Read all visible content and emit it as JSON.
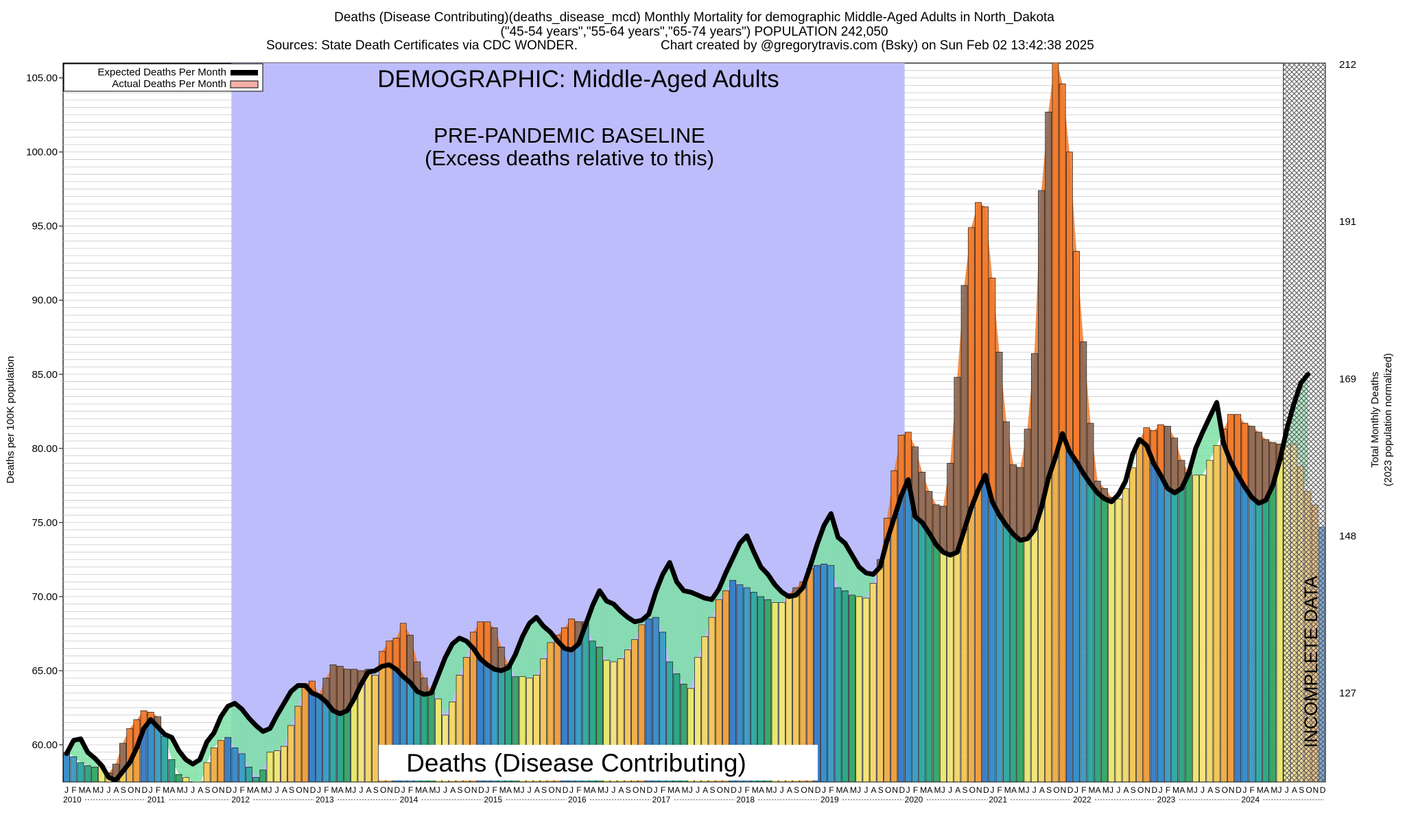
{
  "chart_data": {
    "type": "bar",
    "title": "Deaths (Disease Contributing)(deaths_disease_mcd) Monthly Mortality for demographic Middle-Aged Adults in North_Dakota",
    "subtitle": "(\"45-54 years\",\"55-64 years\",\"65-74 years\") POPULATION 242,050",
    "sources": "Sources: State Death Certificates via CDC WONDER.",
    "credit": "Chart created by @gregorytravis.com (Bsky) on Sun Feb 02 13:42:38 2025",
    "ylabel": "Deaths per 100K population",
    "y2label_line1": "Total Monthly Deaths",
    "y2label_line2": "(2023 population normalized)",
    "ylim": [
      57.5,
      106
    ],
    "y_ticks": [
      "60.00",
      "65.00",
      "70.00",
      "75.00",
      "80.00",
      "85.00",
      "90.00",
      "95.00",
      "100.00",
      "105.00"
    ],
    "y2_ticks": [
      {
        "label": "127",
        "at": 63.5
      },
      {
        "label": "148",
        "at": 74.1
      },
      {
        "label": "169",
        "at": 84.7
      },
      {
        "label": "191",
        "at": 95.3
      },
      {
        "label": "212",
        "at": 105.9
      }
    ],
    "month_letters": [
      "J",
      "F",
      "M",
      "A",
      "M",
      "J",
      "J",
      "A",
      "S",
      "O",
      "N",
      "D"
    ],
    "years": [
      "2010",
      "2011",
      "2012",
      "2013",
      "2014",
      "2015",
      "2016",
      "2017",
      "2018",
      "2019",
      "2020",
      "2021",
      "2022",
      "2023",
      "2024"
    ],
    "legend": {
      "expected": "Expected Deaths Per Month",
      "actual": "Actual Deaths Per Month",
      "position": "top-left"
    },
    "annotations": {
      "demographic": "DEMOGRAPHIC: Middle-Aged Adults",
      "baseline_line1": "PRE-PANDEMIC BASELINE",
      "baseline_line2": "(Excess deaths relative to this)",
      "category": "Deaths (Disease Contributing)",
      "incomplete": "INCOMPLETE DATA"
    },
    "baseline_period": [
      "2012-01",
      "2019-12"
    ],
    "incomplete_period": [
      "2024-07",
      "2024-12"
    ],
    "colors": {
      "baseline_band": "#bdbdfb",
      "expected_line": "#000000",
      "excess_fill": "#f07a2c",
      "deficit_fill": "#7de0a5",
      "actual_area": "#f6b0a8",
      "month_palette": [
        "#3a8fc9",
        "#3f9ec6",
        "#35a9a4",
        "#2ea886",
        "#3aa868",
        "#e8e870",
        "#f2e47a",
        "#f2d86c",
        "#f2c85c",
        "#eeb04a",
        "#eea040",
        "#3a80c8"
      ]
    },
    "actual": [
      59.5,
      59.2,
      58.8,
      58.6,
      58.5,
      58.6,
      58.1,
      58.7,
      60.1,
      61.1,
      61.7,
      62.3,
      62.2,
      61.9,
      60.6,
      59.0,
      58.0,
      57.8,
      57.5,
      57.2,
      58.8,
      59.8,
      60.3,
      60.5,
      59.8,
      59.4,
      58.5,
      57.8,
      58.3,
      59.5,
      59.6,
      59.9,
      61.3,
      62.6,
      64.1,
      64.3,
      63.4,
      64.5,
      65.4,
      65.3,
      65.1,
      65.1,
      65.0,
      65.1,
      64.7,
      66.3,
      67.0,
      67.2,
      68.2,
      67.4,
      65.6,
      64.5,
      63.6,
      63.1,
      62.0,
      62.9,
      64.7,
      65.9,
      67.6,
      68.3,
      68.3,
      67.9,
      66.6,
      65.4,
      64.6,
      64.6,
      64.5,
      64.7,
      65.8,
      66.9,
      67.4,
      67.9,
      68.5,
      68.3,
      68.3,
      67.0,
      66.6,
      65.7,
      65.6,
      65.8,
      66.4,
      67.1,
      68.1,
      68.5,
      68.6,
      67.6,
      65.6,
      64.8,
      64.1,
      63.8,
      65.9,
      67.3,
      68.6,
      69.8,
      70.4,
      71.1,
      70.8,
      70.6,
      70.3,
      70.0,
      69.8,
      69.6,
      69.6,
      70.2,
      70.6,
      71.0,
      71.9,
      72.1,
      72.2,
      72.1,
      70.6,
      70.4,
      70.1,
      70.0,
      69.9,
      70.9,
      72.5,
      75.3,
      78.5,
      80.9,
      81.1,
      80.1,
      78.4,
      77.1,
      76.2,
      76.1,
      79.0,
      84.8,
      91.0,
      94.9,
      96.6,
      96.3,
      91.5,
      86.5,
      81.8,
      78.9,
      78.7,
      81.3,
      86.4,
      97.4,
      102.7,
      106.5,
      104.6,
      100.0,
      93.3,
      87.2,
      81.7,
      77.8,
      77.3,
      76.7,
      76.6,
      77.3,
      78.7,
      80.6,
      81.4,
      81.2,
      81.6,
      81.5,
      80.7,
      79.2,
      78.4,
      78.2,
      78.2,
      79.2,
      80.2,
      81.3,
      82.3,
      82.3,
      81.7,
      81.5,
      81.1,
      80.6,
      80.4,
      80.3,
      80.2,
      80.3,
      78.8,
      77.1,
      76.2,
      74.7
    ],
    "expected": [
      59.4,
      60.3,
      60.4,
      59.5,
      59.1,
      58.6,
      57.8,
      57.6,
      58.2,
      58.8,
      59.8,
      61.1,
      61.7,
      61.2,
      60.7,
      60.5,
      59.6,
      59.0,
      58.7,
      59.0,
      60.2,
      60.8,
      61.9,
      62.6,
      62.8,
      62.4,
      61.8,
      61.3,
      60.9,
      61.1,
      62.0,
      62.8,
      63.6,
      64.0,
      64.0,
      63.5,
      63.3,
      62.9,
      62.3,
      62.1,
      62.3,
      63.1,
      64.1,
      64.9,
      65.0,
      65.3,
      65.4,
      65.1,
      64.6,
      64.2,
      63.6,
      63.4,
      63.5,
      64.7,
      65.9,
      66.8,
      67.2,
      67.0,
      66.5,
      65.8,
      65.4,
      65.1,
      65.0,
      65.2,
      66.1,
      67.3,
      68.2,
      68.6,
      68.0,
      67.6,
      67.0,
      66.5,
      66.4,
      66.8,
      68.1,
      69.4,
      70.4,
      69.7,
      69.5,
      69.0,
      68.6,
      68.3,
      68.4,
      68.8,
      70.3,
      71.5,
      72.3,
      71.0,
      70.4,
      70.3,
      70.1,
      69.9,
      69.8,
      70.5,
      71.6,
      72.6,
      73.6,
      74.1,
      73.0,
      72.0,
      71.5,
      70.8,
      70.3,
      70.0,
      70.1,
      70.6,
      72.0,
      73.5,
      74.8,
      75.6,
      74.0,
      73.6,
      72.8,
      72.0,
      71.6,
      71.5,
      72.0,
      73.8,
      75.3,
      76.8,
      77.9,
      75.4,
      75.0,
      74.3,
      73.5,
      73.0,
      72.8,
      73.0,
      74.5,
      76.0,
      77.2,
      78.2,
      76.4,
      75.5,
      74.8,
      74.2,
      73.8,
      73.9,
      74.5,
      76.0,
      78.0,
      79.4,
      81.0,
      79.8,
      79.1,
      78.3,
      77.6,
      77.0,
      76.6,
      76.4,
      76.9,
      77.8,
      79.6,
      80.6,
      80.2,
      79.0,
      78.2,
      77.3,
      77.0,
      77.3,
      78.3,
      80.0,
      81.1,
      82.1,
      83.1,
      80.3,
      79.1,
      78.2,
      77.4,
      76.7,
      76.3,
      76.5,
      77.5,
      79.2,
      81.3,
      83.0,
      84.4,
      85.0
    ]
  }
}
